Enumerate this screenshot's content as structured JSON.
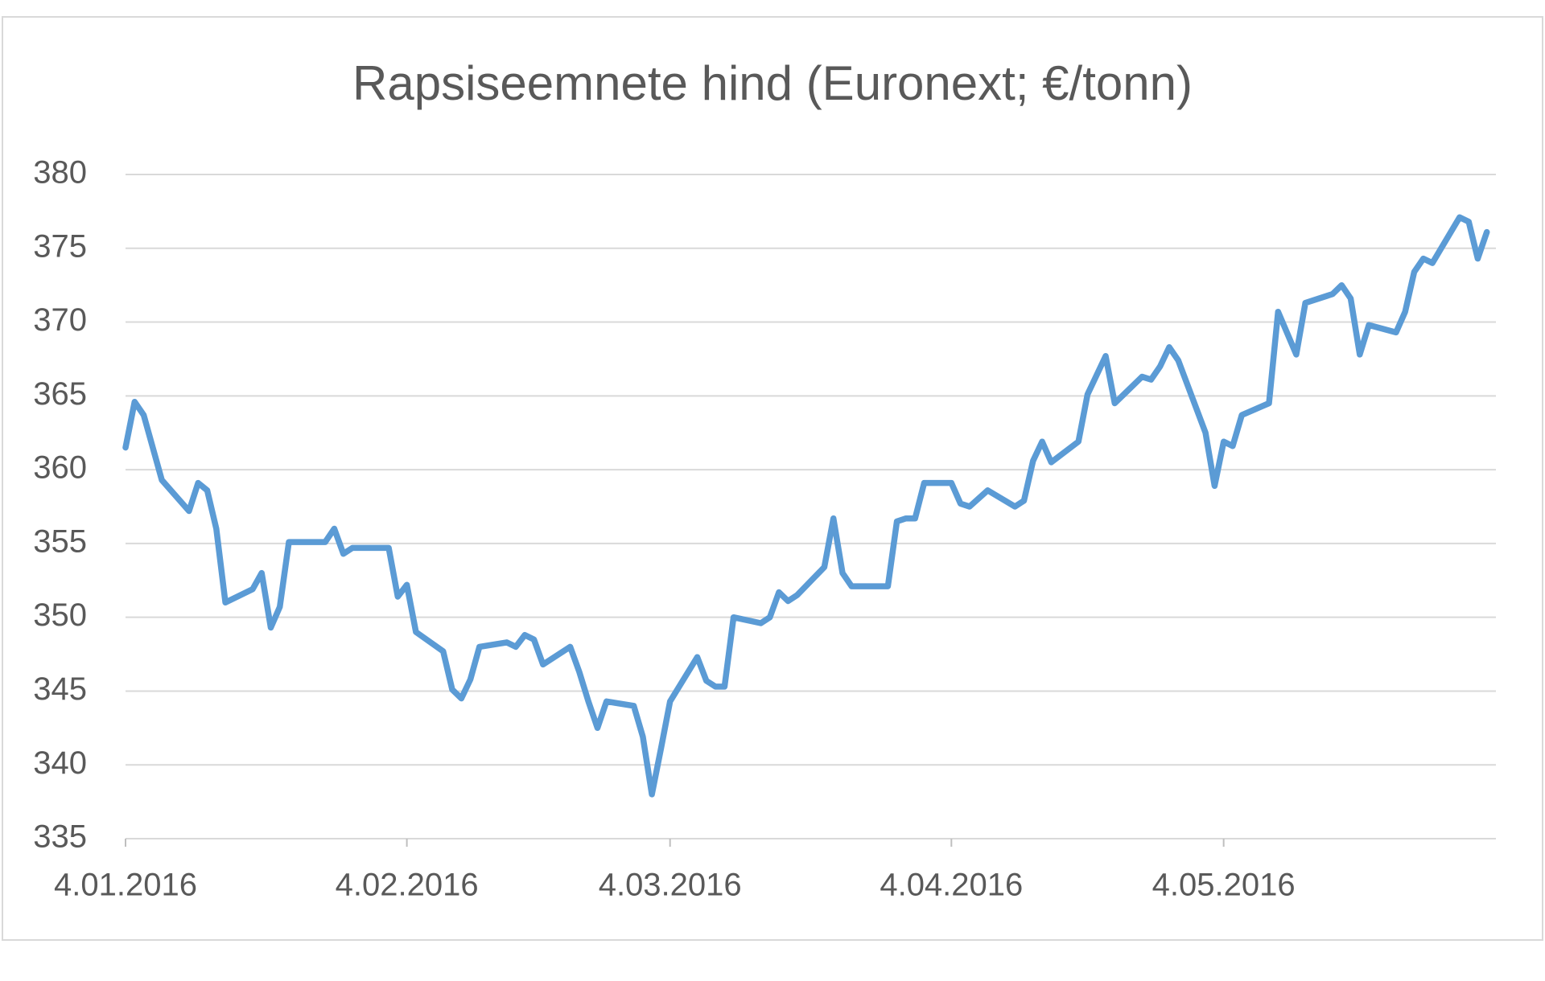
{
  "chart_data": {
    "type": "line",
    "title": "Rapsiseemnete hind (Euronext; €/tonn)",
    "x": [
      "2016-01-04",
      "2016-01-05",
      "2016-01-06",
      "2016-01-08",
      "2016-01-11",
      "2016-01-12",
      "2016-01-13",
      "2016-01-14",
      "2016-01-15",
      "2016-01-18",
      "2016-01-19",
      "2016-01-20",
      "2016-01-21",
      "2016-01-22",
      "2016-01-26",
      "2016-01-27",
      "2016-01-28",
      "2016-01-29",
      "2016-02-02",
      "2016-02-03",
      "2016-02-04",
      "2016-02-05",
      "2016-02-08",
      "2016-02-09",
      "2016-02-10",
      "2016-02-11",
      "2016-02-12",
      "2016-02-15",
      "2016-02-16",
      "2016-02-17",
      "2016-02-18",
      "2016-02-19",
      "2016-02-22",
      "2016-02-23",
      "2016-02-24",
      "2016-02-25",
      "2016-02-26",
      "2016-02-29",
      "2016-03-01",
      "2016-03-02",
      "2016-03-03",
      "2016-03-04",
      "2016-03-07",
      "2016-03-08",
      "2016-03-09",
      "2016-03-10",
      "2016-03-11",
      "2016-03-14",
      "2016-03-15",
      "2016-03-16",
      "2016-03-17",
      "2016-03-18",
      "2016-03-21",
      "2016-03-22",
      "2016-03-23",
      "2016-03-24",
      "2016-03-28",
      "2016-03-29",
      "2016-03-30",
      "2016-03-31",
      "2016-04-01",
      "2016-04-04",
      "2016-04-05",
      "2016-04-06",
      "2016-04-08",
      "2016-04-11",
      "2016-04-12",
      "2016-04-13",
      "2016-04-14",
      "2016-04-15",
      "2016-04-18",
      "2016-04-19",
      "2016-04-21",
      "2016-04-22",
      "2016-04-25",
      "2016-04-26",
      "2016-04-27",
      "2016-04-28",
      "2016-04-29",
      "2016-05-02",
      "2016-05-03",
      "2016-05-04",
      "2016-05-05",
      "2016-05-06",
      "2016-05-09",
      "2016-05-10",
      "2016-05-12",
      "2016-05-13",
      "2016-05-16",
      "2016-05-17",
      "2016-05-18",
      "2016-05-19",
      "2016-05-20",
      "2016-05-23",
      "2016-05-24",
      "2016-05-25",
      "2016-05-26",
      "2016-05-27",
      "2016-05-30",
      "2016-05-31",
      "2016-06-01",
      "2016-06-02"
    ],
    "series": [
      {
        "color": "#5b9bd5",
        "values": [
          361.5,
          364.6,
          363.7,
          359.3,
          357.2,
          359.1,
          358.6,
          356,
          351,
          351.9,
          353,
          349.3,
          350.7,
          355.1,
          355.1,
          356,
          354.3,
          354.7,
          354.7,
          351.4,
          352.2,
          349,
          347.7,
          345.1,
          344.5,
          345.8,
          348,
          348.3,
          348,
          348.8,
          348.5,
          346.8,
          348,
          346.3,
          344.3,
          342.5,
          344.3,
          344,
          341.9,
          338,
          341.1,
          344.3,
          347.3,
          345.7,
          345.3,
          345.3,
          350,
          349.6,
          350,
          351.7,
          351.1,
          351.5,
          353.4,
          356.7,
          353,
          352.1,
          352.1,
          356.5,
          356.7,
          356.7,
          359.1,
          359.1,
          357.7,
          357.5,
          358.6,
          357.5,
          357.9,
          360.6,
          361.9,
          360.5,
          361.9,
          365.1,
          367.7,
          364.5,
          366.3,
          366.1,
          367,
          368.3,
          367.4,
          362.5,
          358.9,
          361.9,
          361.6,
          363.7,
          364.5,
          370.7,
          367.8,
          371.3,
          371.9,
          372.5,
          371.6,
          367.8,
          369.8,
          369.3,
          370.7,
          373.4,
          374.3,
          374,
          377.1,
          376.8,
          374.3,
          376.1
        ]
      }
    ],
    "xlim": [
      "2016-01-04",
      "2016-06-03"
    ],
    "xticks": [
      {
        "value": "2016-01-04",
        "label": "4.01.2016"
      },
      {
        "value": "2016-02-04",
        "label": "4.02.2016"
      },
      {
        "value": "2016-03-04",
        "label": "4.03.2016"
      },
      {
        "value": "2016-04-04",
        "label": "4.04.2016"
      },
      {
        "value": "2016-05-04",
        "label": "4.05.2016"
      }
    ],
    "ylim": [
      335,
      380
    ],
    "yticks": [
      335,
      340,
      345,
      350,
      355,
      360,
      365,
      370,
      375,
      380
    ],
    "grid": true
  }
}
